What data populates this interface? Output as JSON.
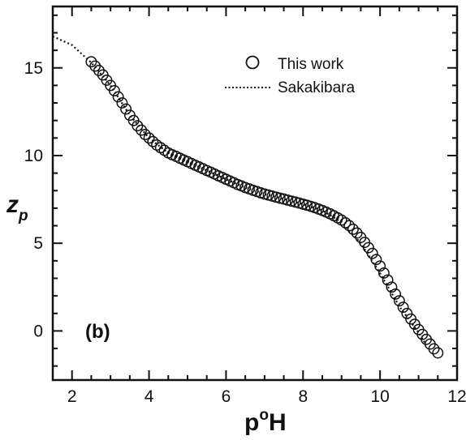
{
  "chart_data": {
    "type": "scatter",
    "title": "",
    "panel_label": "(b)",
    "xlabel": {
      "base": "p",
      "sup": "o",
      "rest": "H"
    },
    "ylabel": {
      "main": "z",
      "sub": "p"
    },
    "xlim": [
      1.5,
      12
    ],
    "ylim": [
      -2.8,
      18.5
    ],
    "x_ticks": [
      2,
      4,
      6,
      8,
      10,
      12
    ],
    "x_tick_labels": [
      "2",
      "4",
      "6",
      "8",
      "10",
      "12"
    ],
    "y_ticks": [
      0,
      5,
      10,
      15
    ],
    "y_tick_labels": [
      "0",
      "5",
      "10",
      "15"
    ],
    "grid": false,
    "legend_position": "top-right",
    "series": [
      {
        "name": "This work",
        "style": "open-circle",
        "color": "#111111",
        "points": [
          [
            2.5,
            15.35
          ],
          [
            2.6,
            15.1
          ],
          [
            2.7,
            14.85
          ],
          [
            2.8,
            14.6
          ],
          [
            2.9,
            14.3
          ],
          [
            3.0,
            14.0
          ],
          [
            3.1,
            13.7
          ],
          [
            3.2,
            13.35
          ],
          [
            3.3,
            13.0
          ],
          [
            3.4,
            12.65
          ],
          [
            3.5,
            12.3
          ],
          [
            3.6,
            12.0
          ],
          [
            3.7,
            11.7
          ],
          [
            3.8,
            11.45
          ],
          [
            3.9,
            11.2
          ],
          [
            4.0,
            11.0
          ],
          [
            4.1,
            10.8
          ],
          [
            4.2,
            10.6
          ],
          [
            4.3,
            10.45
          ],
          [
            4.4,
            10.3
          ],
          [
            4.5,
            10.15
          ],
          [
            4.6,
            10.05
          ],
          [
            4.7,
            9.95
          ],
          [
            4.8,
            9.85
          ],
          [
            4.9,
            9.75
          ],
          [
            5.0,
            9.65
          ],
          [
            5.1,
            9.55
          ],
          [
            5.2,
            9.45
          ],
          [
            5.3,
            9.35
          ],
          [
            5.4,
            9.25
          ],
          [
            5.5,
            9.15
          ],
          [
            5.6,
            9.05
          ],
          [
            5.7,
            8.95
          ],
          [
            5.8,
            8.85
          ],
          [
            5.9,
            8.75
          ],
          [
            6.0,
            8.65
          ],
          [
            6.1,
            8.55
          ],
          [
            6.2,
            8.45
          ],
          [
            6.3,
            8.35
          ],
          [
            6.4,
            8.27
          ],
          [
            6.5,
            8.18
          ],
          [
            6.6,
            8.1
          ],
          [
            6.7,
            8.02
          ],
          [
            6.8,
            7.95
          ],
          [
            6.9,
            7.88
          ],
          [
            7.0,
            7.81
          ],
          [
            7.1,
            7.75
          ],
          [
            7.2,
            7.69
          ],
          [
            7.3,
            7.63
          ],
          [
            7.4,
            7.57
          ],
          [
            7.5,
            7.52
          ],
          [
            7.6,
            7.46
          ],
          [
            7.7,
            7.4
          ],
          [
            7.8,
            7.35
          ],
          [
            7.9,
            7.29
          ],
          [
            8.0,
            7.23
          ],
          [
            8.1,
            7.17
          ],
          [
            8.2,
            7.1
          ],
          [
            8.3,
            7.03
          ],
          [
            8.4,
            6.95
          ],
          [
            8.5,
            6.87
          ],
          [
            8.6,
            6.78
          ],
          [
            8.7,
            6.68
          ],
          [
            8.8,
            6.57
          ],
          [
            8.9,
            6.45
          ],
          [
            9.0,
            6.32
          ],
          [
            9.1,
            6.17
          ],
          [
            9.2,
            6.0
          ],
          [
            9.3,
            5.8
          ],
          [
            9.4,
            5.58
          ],
          [
            9.5,
            5.33
          ],
          [
            9.6,
            5.05
          ],
          [
            9.7,
            4.75
          ],
          [
            9.8,
            4.42
          ],
          [
            9.9,
            4.07
          ],
          [
            10.0,
            3.7
          ],
          [
            10.1,
            3.3
          ],
          [
            10.2,
            2.9
          ],
          [
            10.3,
            2.5
          ],
          [
            10.4,
            2.1
          ],
          [
            10.5,
            1.72
          ],
          [
            10.6,
            1.35
          ],
          [
            10.7,
            1.0
          ],
          [
            10.8,
            0.68
          ],
          [
            10.9,
            0.38
          ],
          [
            11.0,
            0.08
          ],
          [
            11.1,
            -0.2
          ],
          [
            11.2,
            -0.48
          ],
          [
            11.3,
            -0.75
          ],
          [
            11.4,
            -1.02
          ],
          [
            11.5,
            -1.25
          ]
        ]
      },
      {
        "name": "Sakakibara",
        "style": "dotted-line",
        "color": "#111111",
        "points": [
          [
            1.5,
            16.8
          ],
          [
            2.0,
            16.3
          ],
          [
            2.5,
            15.3
          ],
          [
            3.0,
            14.0
          ],
          [
            3.5,
            12.3
          ],
          [
            4.0,
            11.0
          ],
          [
            4.5,
            10.15
          ],
          [
            5.0,
            9.65
          ],
          [
            5.5,
            9.15
          ],
          [
            6.0,
            8.65
          ],
          [
            6.5,
            8.18
          ],
          [
            7.0,
            7.81
          ],
          [
            7.5,
            7.52
          ],
          [
            8.0,
            7.23
          ],
          [
            8.5,
            6.87
          ],
          [
            9.0,
            6.2
          ],
          [
            9.5,
            5.0
          ],
          [
            10.0,
            3.3
          ],
          [
            10.5,
            1.4
          ],
          [
            11.0,
            -0.1
          ],
          [
            11.2,
            -0.8
          ]
        ]
      }
    ]
  }
}
